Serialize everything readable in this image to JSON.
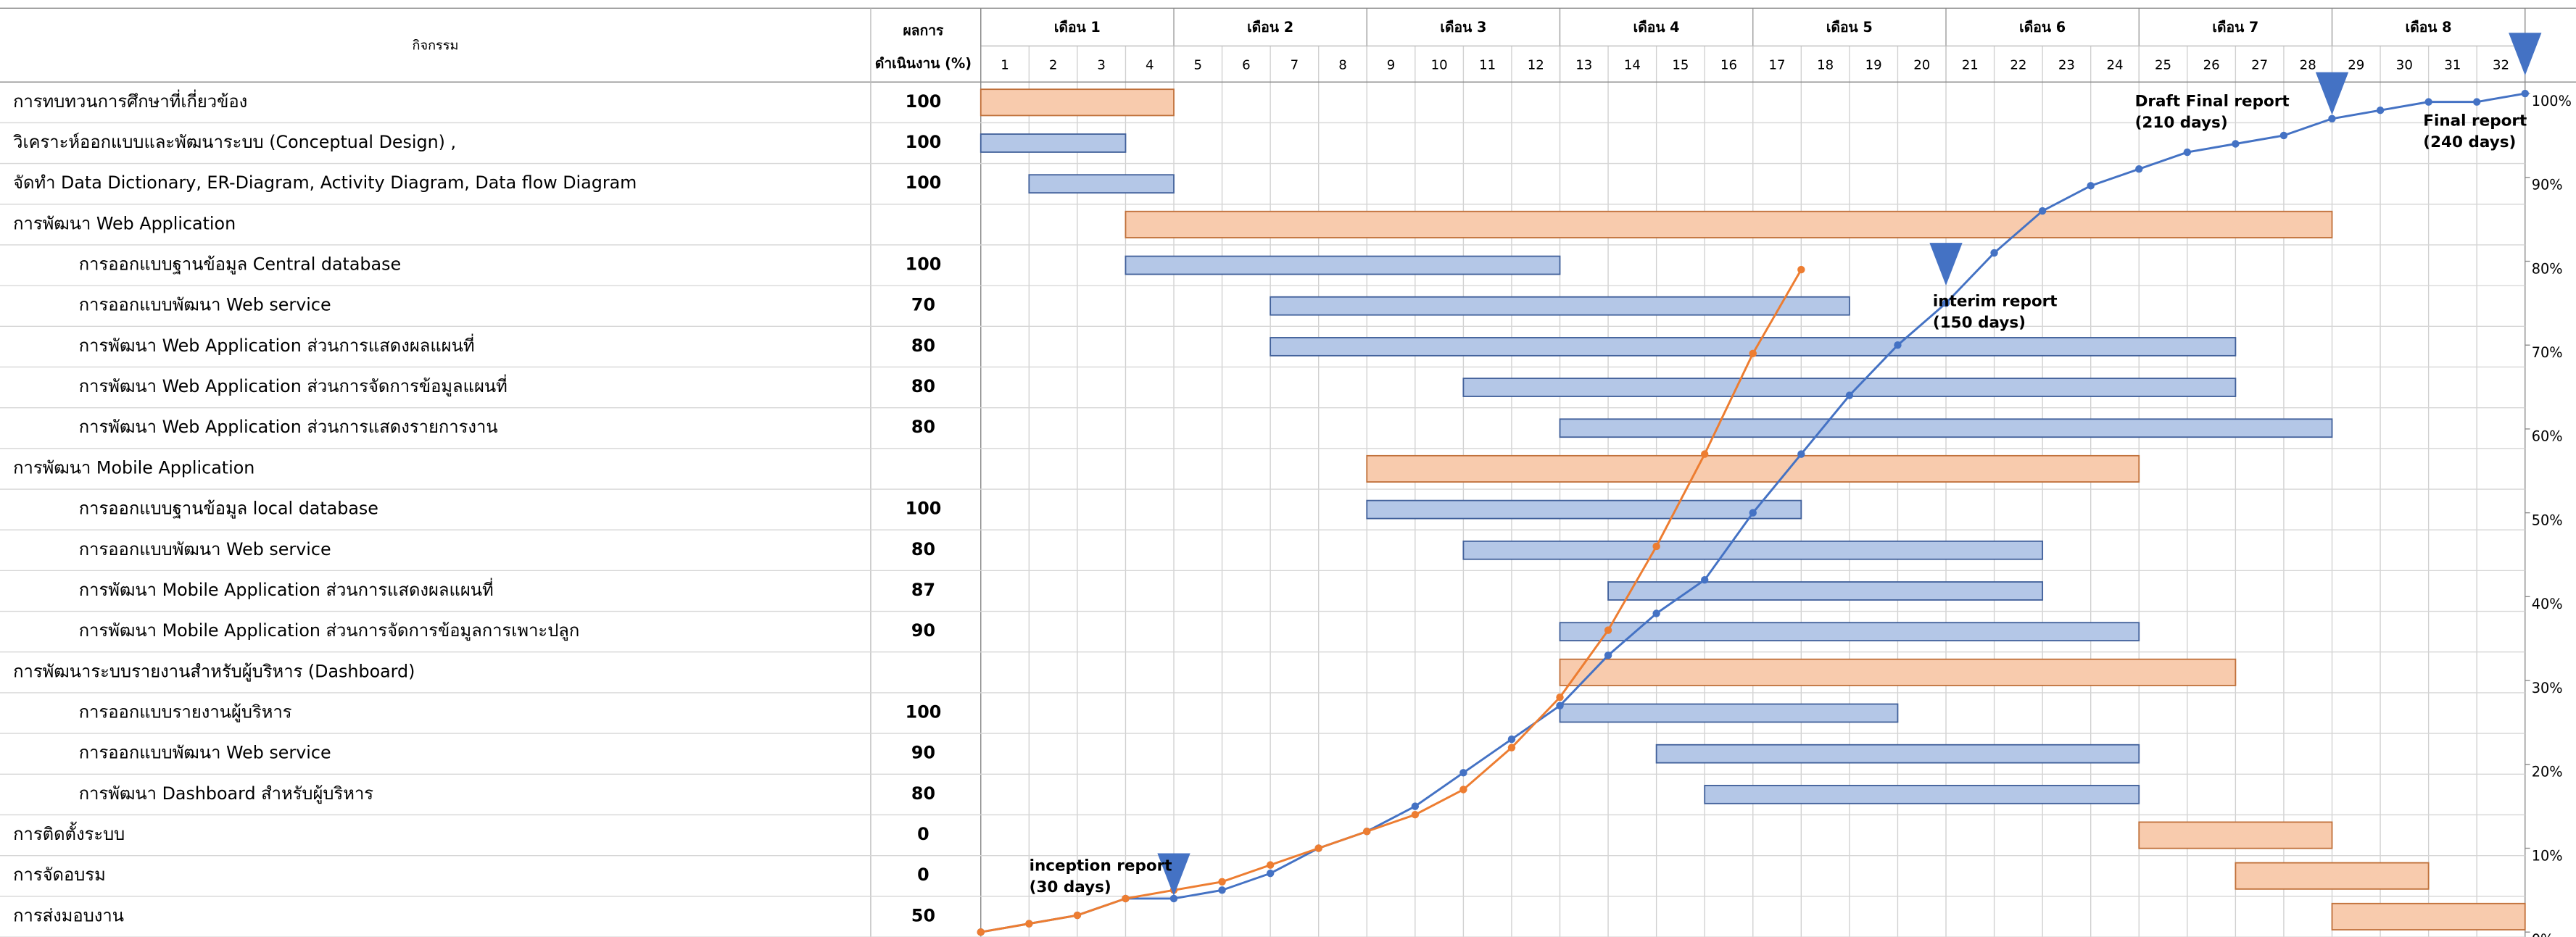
{
  "chart_data": {
    "type": "gantt-scurve",
    "header": {
      "activity": "กิจกรรม",
      "progress_line1": "ผลการ",
      "progress_line2": "ดำเนินงาน (%)"
    },
    "months": [
      "เดือน 1",
      "เดือน 2",
      "เดือน 3",
      "เดือน 4",
      "เดือน 5",
      "เดือน 6",
      "เดือน 7",
      "เดือน 8"
    ],
    "weeks": [
      1,
      2,
      3,
      4,
      5,
      6,
      7,
      8,
      9,
      10,
      11,
      12,
      13,
      14,
      15,
      16,
      17,
      18,
      19,
      20,
      21,
      22,
      23,
      24,
      25,
      26,
      27,
      28,
      29,
      30,
      31,
      32
    ],
    "group_color": "#f8cbad",
    "group_border": "#c0703a",
    "task_color": "#b4c7e7",
    "task_border": "#41609a",
    "tasks": [
      {
        "name": "การทบทวนการศึกษาที่เกี่ยวข้อง",
        "progress": 100,
        "start": 0,
        "end": 4,
        "kind": "group"
      },
      {
        "name": "วิเคราะห์ออกแบบและพัฒนาระบบ (Conceptual Design) ,",
        "progress": 100,
        "start": 0,
        "end": 3,
        "kind": "top-task"
      },
      {
        "name": "จัดทำ Data Dictionary, ER-Diagram, Activity Diagram, Data flow Diagram",
        "progress": 100,
        "start": 1,
        "end": 4,
        "kind": "top-task"
      },
      {
        "name": "การพัฒนา Web Application",
        "progress": null,
        "start": 3,
        "end": 28,
        "kind": "group"
      },
      {
        "name": "การออกแบบฐานข้อมูล Central database",
        "progress": 100,
        "start": 3,
        "end": 12,
        "kind": "task"
      },
      {
        "name": "การออกแบบพัฒนา Web service",
        "progress": 70,
        "start": 6,
        "end": 18,
        "kind": "task"
      },
      {
        "name": "การพัฒนา Web Application ส่วนการแสดงผลแผนที่",
        "progress": 80,
        "start": 6,
        "end": 26,
        "kind": "task"
      },
      {
        "name": "การพัฒนา Web Application ส่วนการจัดการข้อมูลแผนที่",
        "progress": 80,
        "start": 10,
        "end": 26,
        "kind": "task"
      },
      {
        "name": "การพัฒนา Web Application ส่วนการแสดงรายการงาน",
        "progress": 80,
        "start": 12,
        "end": 28,
        "kind": "task"
      },
      {
        "name": "การพัฒนา Mobile Application",
        "progress": null,
        "start": 8,
        "end": 24,
        "kind": "group"
      },
      {
        "name": "การออกแบบฐานข้อมูล local database",
        "progress": 100,
        "start": 8,
        "end": 17,
        "kind": "task"
      },
      {
        "name": "การออกแบบพัฒนา Web service",
        "progress": 80,
        "start": 10,
        "end": 22,
        "kind": "task"
      },
      {
        "name": "การพัฒนา Mobile Application ส่วนการแสดงผลแผนที่",
        "progress": 87,
        "start": 13,
        "end": 22,
        "kind": "task"
      },
      {
        "name": "การพัฒนา Mobile Application ส่วนการจัดการข้อมูลการเพาะปลูก",
        "progress": 90,
        "start": 12,
        "end": 24,
        "kind": "task"
      },
      {
        "name": "การพัฒนาระบบรายงานสำหรับผู้บริหาร (Dashboard)",
        "progress": null,
        "start": 12,
        "end": 26,
        "kind": "group"
      },
      {
        "name": "การออกแบบรายงานผู้บริหาร",
        "progress": 100,
        "start": 12,
        "end": 19,
        "kind": "task"
      },
      {
        "name": "การออกแบบพัฒนา Web service",
        "progress": 90,
        "start": 14,
        "end": 24,
        "kind": "task"
      },
      {
        "name": "การพัฒนา Dashboard สำหรับผู้บริหาร",
        "progress": 80,
        "start": 15,
        "end": 24,
        "kind": "task"
      },
      {
        "name": "การติดตั้งระบบ",
        "progress": 0,
        "start": 24,
        "end": 28,
        "kind": "group"
      },
      {
        "name": "การจัดอบรม",
        "progress": 0,
        "start": 26,
        "end": 30,
        "kind": "group"
      },
      {
        "name": "การส่งมอบงาน",
        "progress": 50,
        "start": 28,
        "end": 32,
        "kind": "group"
      }
    ],
    "x": [
      0,
      1,
      2,
      3,
      4,
      5,
      6,
      7,
      8,
      9,
      10,
      11,
      12,
      13,
      14,
      15,
      16,
      17,
      18,
      19,
      20,
      21,
      22,
      23,
      24,
      25,
      26,
      27,
      28,
      29,
      30,
      31,
      32
    ],
    "series": [
      {
        "color": "#4472c4",
        "values": [
          0,
          1,
          2,
          4,
          4,
          5,
          7,
          10,
          12,
          15,
          19,
          23,
          27,
          33,
          38,
          42,
          50,
          57,
          64,
          70,
          75,
          81,
          86,
          89,
          91,
          93,
          94,
          95,
          97,
          98,
          99,
          99,
          100
        ]
      },
      {
        "color": "#ed7d31",
        "values": [
          0,
          1,
          2,
          4,
          5,
          6,
          8,
          10,
          12,
          14,
          17,
          22,
          28,
          36,
          46,
          57,
          69,
          79,
          null,
          null,
          null,
          null,
          null,
          null,
          null,
          null,
          null,
          null,
          null,
          null,
          null,
          null,
          null
        ]
      }
    ],
    "ylim": [
      0,
      100
    ],
    "yticks": [
      {
        "value": 0,
        "label": "0%"
      },
      {
        "value": 10,
        "label": "10%"
      },
      {
        "value": 20,
        "label": "20%"
      },
      {
        "value": 30,
        "label": "30%"
      },
      {
        "value": 40,
        "label": "40%"
      },
      {
        "value": 50,
        "label": "50%"
      },
      {
        "value": 60,
        "label": "60%"
      },
      {
        "value": 70,
        "label": "70%"
      },
      {
        "value": 80,
        "label": "80%"
      },
      {
        "value": 90,
        "label": "90%"
      },
      {
        "value": 100,
        "label": "100%"
      }
    ],
    "marker_color": "#4472c4",
    "annotations": [
      {
        "week": 4,
        "lines": [
          "inception report",
          "(30 days)"
        ]
      },
      {
        "week": 20,
        "lines": [
          "interim report",
          "(150 days)"
        ]
      },
      {
        "week": 28,
        "lines": [
          "Draft Final report",
          "(210 days)"
        ]
      },
      {
        "week": 32,
        "lines": [
          "Final report",
          "(240 days)"
        ]
      }
    ]
  }
}
